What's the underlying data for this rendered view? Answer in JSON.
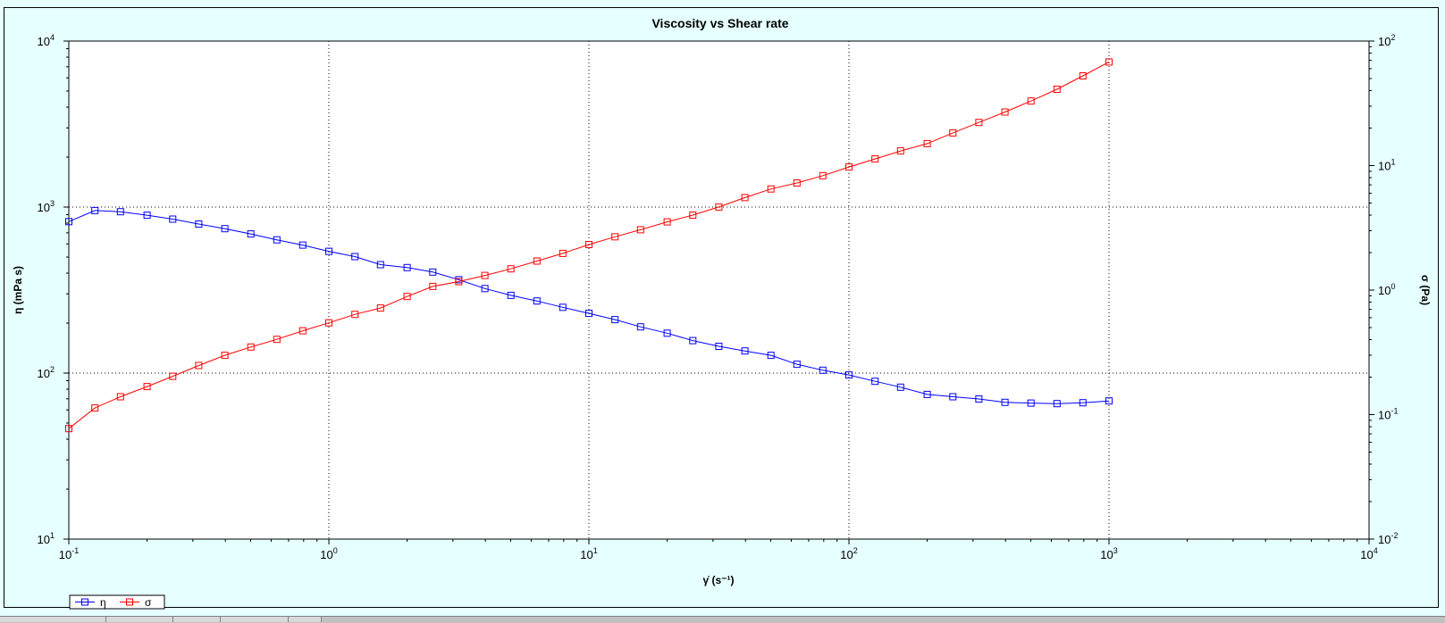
{
  "chart_data": {
    "type": "line",
    "title": "Viscosity vs Shear rate",
    "xlabel": "γ̇ (s⁻¹)",
    "ylabel_left": "η (mPa s)",
    "ylabel_right": "σ (Pa)",
    "x_scale": "log",
    "y_left_scale": "log",
    "y_right_scale": "log",
    "xlim": [
      0.1,
      10000
    ],
    "ylim_left": [
      10,
      10000
    ],
    "ylim_right": [
      0.01,
      100
    ],
    "x_ticks": [
      {
        "base": "10",
        "exp": "-1"
      },
      {
        "base": "10",
        "exp": "0"
      },
      {
        "base": "10",
        "exp": "1"
      },
      {
        "base": "10",
        "exp": "2"
      },
      {
        "base": "10",
        "exp": "3"
      },
      {
        "base": "10",
        "exp": "4"
      }
    ],
    "y_left_ticks": [
      {
        "base": "10",
        "exp": "1"
      },
      {
        "base": "10",
        "exp": "2"
      },
      {
        "base": "10",
        "exp": "3"
      },
      {
        "base": "10",
        "exp": "4"
      }
    ],
    "y_right_ticks": [
      {
        "base": "10",
        "exp": "-2"
      },
      {
        "base": "10",
        "exp": "-1"
      },
      {
        "base": "10",
        "exp": "0"
      },
      {
        "base": "10",
        "exp": "1"
      },
      {
        "base": "10",
        "exp": "2"
      }
    ],
    "grid": "dotted major",
    "legend_position": "bottom-left",
    "x": [
      0.1,
      0.126,
      0.158,
      0.2,
      0.251,
      0.316,
      0.398,
      0.501,
      0.631,
      0.794,
      1.0,
      1.26,
      1.58,
      2.0,
      2.51,
      3.16,
      3.98,
      5.01,
      6.31,
      7.94,
      10.0,
      12.6,
      15.8,
      20.0,
      25.1,
      31.6,
      39.8,
      50.1,
      63.1,
      79.4,
      100,
      126,
      158,
      200,
      251,
      316,
      398,
      501,
      631,
      794,
      1000
    ],
    "series": [
      {
        "name": "η",
        "axis": "left",
        "color": "#0000ff",
        "marker": "square",
        "values": [
          817,
          953,
          938,
          893,
          846,
          790,
          741,
          689,
          635,
          590,
          541,
          503,
          450,
          432,
          406,
          365,
          323,
          294,
          272,
          249,
          229,
          210,
          190,
          174,
          157,
          145,
          136,
          128,
          113,
          104,
          97.4,
          89.2,
          82.2,
          74.4,
          72.0,
          69.8,
          66.6,
          66.0,
          65.5,
          66.3,
          68.0
        ],
        "last_value_note": ""
      },
      {
        "name": "σ",
        "axis": "right",
        "color": "#ff0000",
        "marker": "square",
        "values": [
          0.0772,
          0.113,
          0.139,
          0.168,
          0.203,
          0.248,
          0.299,
          0.349,
          0.402,
          0.471,
          0.546,
          0.638,
          0.718,
          0.888,
          1.07,
          1.17,
          1.31,
          1.48,
          1.71,
          1.97,
          2.32,
          2.68,
          3.05,
          3.53,
          4.0,
          4.65,
          5.53,
          6.49,
          7.25,
          8.3,
          9.74,
          11.3,
          13.1,
          15.0,
          18.3,
          22.2,
          26.9,
          33.0,
          41.0,
          52.5,
          68.0
        ]
      }
    ]
  }
}
